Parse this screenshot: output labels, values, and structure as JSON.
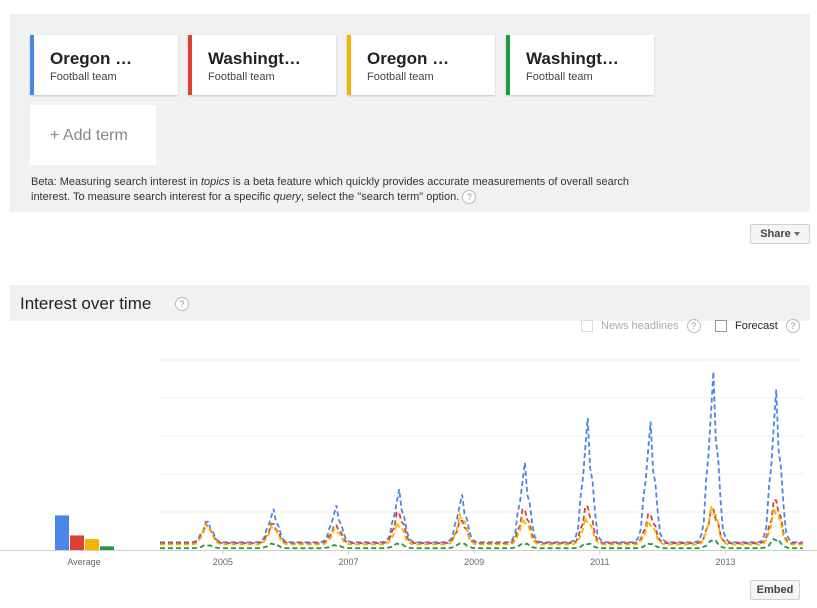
{
  "terms": [
    {
      "name": "Oregon …",
      "type": "Football team",
      "color": "#4a86e8"
    },
    {
      "name": "Washingt…",
      "type": "Football team",
      "color": "#dd4132"
    },
    {
      "name": "Oregon …",
      "type": "Football team",
      "color": "#f4b400"
    },
    {
      "name": "Washingt…",
      "type": "Football team",
      "color": "#1f9b45"
    }
  ],
  "add_term": {
    "label": "+ Add term"
  },
  "beta_note": {
    "part1": "Beta: Measuring search interest in ",
    "em1": "topics",
    "part2": " is a beta feature which quickly provides accurate measurements of overall search interest. To measure search interest for a specific ",
    "em2": "query",
    "part3": ", select the \"search term\" option."
  },
  "help_icon": "?",
  "share": {
    "label": "Share"
  },
  "section": {
    "title": "Interest over time"
  },
  "options": {
    "news_headlines": {
      "label": "News headlines",
      "checked": false,
      "enabled": false
    },
    "forecast": {
      "label": "Forecast",
      "checked": false,
      "enabled": true
    }
  },
  "embed": {
    "label": "Embed"
  },
  "chart_data": {
    "type": "line",
    "x_start": 2004.0,
    "x_end": 2014.25,
    "xticks": [
      "2005",
      "2007",
      "2009",
      "2011",
      "2013"
    ],
    "ylim": [
      0,
      100
    ],
    "grid": true,
    "average_label": "Average",
    "averages": [
      19,
      8,
      6,
      2
    ],
    "series": [
      {
        "color": "#4a86e8",
        "peaks": [
          [
            2004.75,
            17
          ],
          [
            2005.8,
            23
          ],
          [
            2006.8,
            25
          ],
          [
            2007.8,
            34
          ],
          [
            2008.8,
            31
          ],
          [
            2009.8,
            49
          ],
          [
            2010.8,
            74
          ],
          [
            2011.8,
            72
          ],
          [
            2012.8,
            100
          ],
          [
            2013.8,
            90
          ]
        ]
      },
      {
        "color": "#dd4132",
        "peaks": [
          [
            2004.75,
            15
          ],
          [
            2005.8,
            16
          ],
          [
            2006.8,
            15
          ],
          [
            2007.8,
            23
          ],
          [
            2008.8,
            18
          ],
          [
            2009.8,
            25
          ],
          [
            2010.8,
            27
          ],
          [
            2011.8,
            22
          ],
          [
            2012.8,
            25
          ],
          [
            2013.8,
            31
          ]
        ]
      },
      {
        "color": "#f4b400",
        "peaks": [
          [
            2004.75,
            15
          ],
          [
            2005.8,
            14
          ],
          [
            2006.8,
            12
          ],
          [
            2007.8,
            16
          ],
          [
            2008.8,
            21
          ],
          [
            2009.8,
            19
          ],
          [
            2010.8,
            19
          ],
          [
            2011.8,
            17
          ],
          [
            2012.8,
            26
          ],
          [
            2013.8,
            25
          ]
        ]
      },
      {
        "color": "#1f9b45",
        "peaks": [
          [
            2004.75,
            3
          ],
          [
            2005.8,
            4
          ],
          [
            2006.8,
            3
          ],
          [
            2007.8,
            4
          ],
          [
            2008.8,
            4
          ],
          [
            2009.8,
            4
          ],
          [
            2010.8,
            4
          ],
          [
            2011.8,
            4
          ],
          [
            2012.8,
            6
          ],
          [
            2013.8,
            7
          ]
        ]
      }
    ]
  }
}
